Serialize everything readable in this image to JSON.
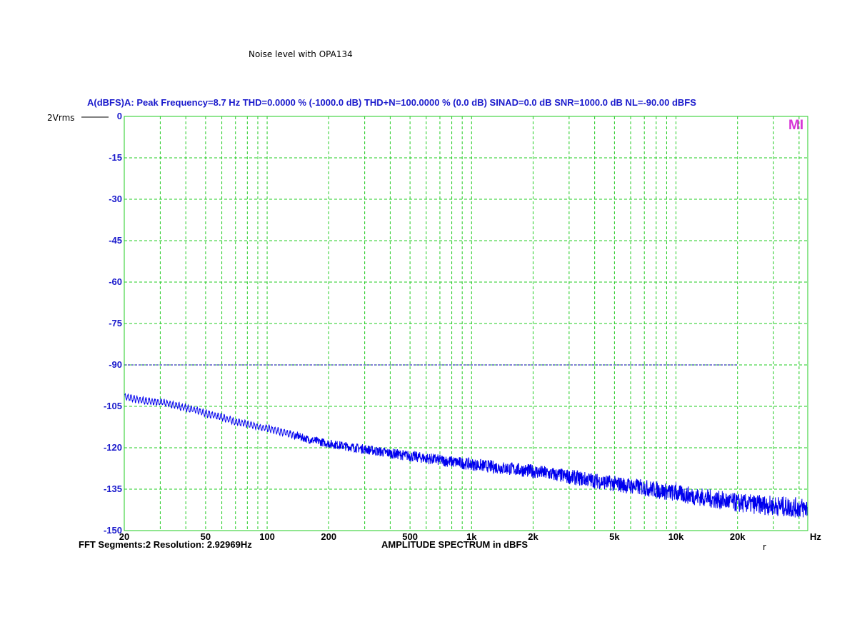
{
  "page": {
    "title": "Noise level with OPA134",
    "ref_label": "2Vrms",
    "logo_text": "MI",
    "corner_mark": "r"
  },
  "colors": {
    "grid": "#22cc22",
    "trace": "#0000ee",
    "axis_text": "#1a1acc",
    "noise_level_line": "#0000aa",
    "logo": "#d633d6"
  },
  "chart_data": {
    "type": "line",
    "header": "A(dBFS)A: Peak Frequency=8.7 Hz  THD=0.0000 % (-1000.0 dB)  THD+N=100.0000 % (0.0 dB)  SINAD=0.0 dB  SNR=1000.0 dB  NL=-90.00 dBFS",
    "xlabel": "AMPLITUDE SPECTRUM in dBFS",
    "x_unit_label": "Hz",
    "xscale": "log",
    "xlim": [
      20,
      44100
    ],
    "ylim": [
      -150,
      0
    ],
    "yticks": [
      0,
      -15,
      -30,
      -45,
      -60,
      -75,
      -90,
      -105,
      -120,
      -135,
      -150
    ],
    "xtick_labels": [
      {
        "value": 20,
        "label": "20"
      },
      {
        "value": 50,
        "label": "50"
      },
      {
        "value": 100,
        "label": "100"
      },
      {
        "value": 200,
        "label": "200"
      },
      {
        "value": 500,
        "label": "500"
      },
      {
        "value": 1000,
        "label": "1k"
      },
      {
        "value": 2000,
        "label": "2k"
      },
      {
        "value": 5000,
        "label": "5k"
      },
      {
        "value": 10000,
        "label": "10k"
      },
      {
        "value": 20000,
        "label": "20k"
      }
    ],
    "grid": true,
    "noise_level": {
      "value": -90,
      "x_range": [
        20,
        20000
      ]
    },
    "series": [
      {
        "x": [
          20,
          25,
          30,
          35,
          40,
          45,
          50,
          60,
          70,
          80,
          100,
          130,
          160,
          200,
          300,
          400,
          500,
          700,
          1000,
          1500,
          2000,
          3000,
          5000,
          7000,
          10000,
          15000,
          20000,
          30000,
          44100
        ],
        "y": [
          -101.5,
          -103,
          -103.5,
          -104.5,
          -105.5,
          -106.5,
          -107.5,
          -109,
          -110.5,
          -111.5,
          -113,
          -115,
          -117,
          -118.5,
          -120.5,
          -122,
          -123,
          -124.5,
          -126,
          -127.5,
          -128.5,
          -130.5,
          -133,
          -134.5,
          -136.5,
          -138.5,
          -140,
          -141,
          -142
        ]
      }
    ],
    "spike": {
      "x": 10000,
      "y": -132.5
    },
    "footer_left": "FFT Segments:2     Resolution: 2.92969Hz"
  }
}
